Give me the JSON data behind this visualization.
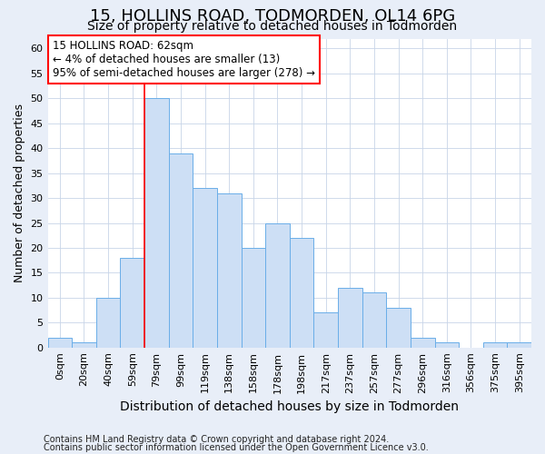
{
  "title1": "15, HOLLINS ROAD, TODMORDEN, OL14 6PG",
  "title2": "Size of property relative to detached houses in Todmorden",
  "xlabel": "Distribution of detached houses by size in Todmorden",
  "ylabel": "Number of detached properties",
  "footnote1": "Contains HM Land Registry data © Crown copyright and database right 2024.",
  "footnote2": "Contains public sector information licensed under the Open Government Licence v3.0.",
  "bar_labels": [
    "0sqm",
    "20sqm",
    "40sqm",
    "59sqm",
    "79sqm",
    "99sqm",
    "119sqm",
    "138sqm",
    "158sqm",
    "178sqm",
    "198sqm",
    "217sqm",
    "237sqm",
    "257sqm",
    "277sqm",
    "296sqm",
    "316sqm",
    "356sqm",
    "375sqm",
    "395sqm"
  ],
  "bar_values": [
    2,
    1,
    10,
    18,
    50,
    39,
    32,
    31,
    20,
    25,
    22,
    7,
    12,
    11,
    8,
    2,
    1,
    0,
    1,
    1
  ],
  "bar_color": "#cddff5",
  "bar_edge_color": "#6aaee8",
  "ylim": [
    0,
    62
  ],
  "yticks": [
    0,
    5,
    10,
    15,
    20,
    25,
    30,
    35,
    40,
    45,
    50,
    55,
    60
  ],
  "red_line_x": 3.5,
  "annotation_line1": "15 HOLLINS ROAD: 62sqm",
  "annotation_line2": "← 4% of detached houses are smaller (13)",
  "annotation_line3": "95% of semi-detached houses are larger (278) →",
  "annotation_box_color": "white",
  "annotation_box_edge": "red",
  "background_color": "#e8eef8",
  "plot_bg_color": "#ffffff",
  "grid_color": "#c8d4e8",
  "title1_fontsize": 13,
  "title2_fontsize": 10,
  "ylabel_fontsize": 9,
  "xlabel_fontsize": 10,
  "tick_fontsize": 8,
  "annot_fontsize": 8.5,
  "footnote_fontsize": 7
}
